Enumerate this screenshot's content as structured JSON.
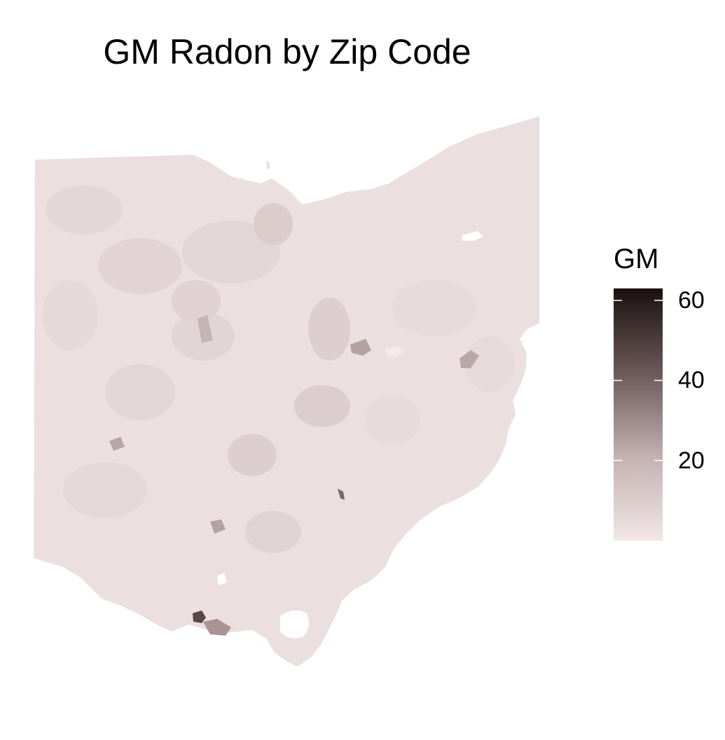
{
  "map": {
    "title": "GM Radon by Zip Code",
    "region": "Ohio",
    "unit": "Zip Code",
    "fill_low_color": "#f2e6e6",
    "fill_high_color": "#1a1010",
    "background_color": "#ffffff",
    "notable_areas": [
      {
        "description": "dark cluster near southern border",
        "value": 55
      },
      {
        "description": "medium cluster along southern border",
        "value": 30
      },
      {
        "description": "central-east spot",
        "value": 22
      },
      {
        "description": "eastern spot",
        "value": 22
      }
    ]
  },
  "legend": {
    "title": "GM",
    "scale_min": 0,
    "scale_max": 63,
    "ticks": [
      {
        "value": 60,
        "label": "60"
      },
      {
        "value": 40,
        "label": "40"
      },
      {
        "value": 20,
        "label": "20"
      }
    ]
  }
}
